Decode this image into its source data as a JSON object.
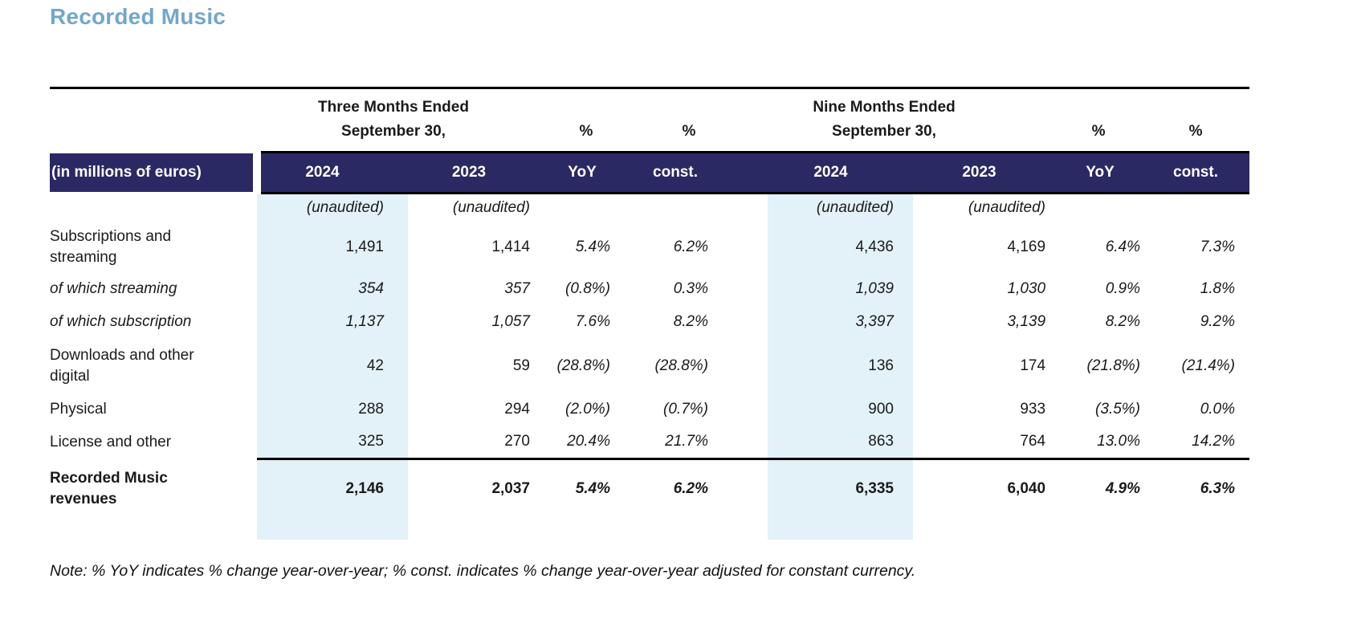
{
  "title": "Recorded Music",
  "table": {
    "group_headers": {
      "three_months_line1": "Three Months Ended",
      "three_months_line2": "September 30,",
      "nine_months_line1": "Nine Months Ended",
      "nine_months_line2": "September 30,",
      "pct_yoy_3m": "%",
      "pct_const_3m": "%",
      "pct_yoy_9m": "%",
      "pct_const_9m": "%"
    },
    "columns": {
      "label": "(in millions of euros)",
      "m3_2024": "2024",
      "m3_2023": "2023",
      "m3_yoy": "YoY",
      "m3_const": "const.",
      "m9_2024": "2024",
      "m9_2023": "2023",
      "m9_yoy": "YoY",
      "m9_const": "const."
    },
    "unaudited_label": "(unaudited)",
    "rows": [
      {
        "label": "Subscriptions and streaming",
        "m3_2024": "1,491",
        "m3_2023": "1,414",
        "m3_yoy": "5.4%",
        "m3_const": "6.2%",
        "m9_2024": "4,436",
        "m9_2023": "4,169",
        "m9_yoy": "6.4%",
        "m9_const": "7.3%"
      },
      {
        "label": "of which streaming",
        "m3_2024": "354",
        "m3_2023": "357",
        "m3_yoy": "(0.8%)",
        "m3_const": "0.3%",
        "m9_2024": "1,039",
        "m9_2023": "1,030",
        "m9_yoy": "0.9%",
        "m9_const": "1.8%"
      },
      {
        "label": "of which subscription",
        "m3_2024": "1,137",
        "m3_2023": "1,057",
        "m3_yoy": "7.6%",
        "m3_const": "8.2%",
        "m9_2024": "3,397",
        "m9_2023": "3,139",
        "m9_yoy": "8.2%",
        "m9_const": "9.2%"
      },
      {
        "label": "Downloads and other digital",
        "m3_2024": "42",
        "m3_2023": "59",
        "m3_yoy": "(28.8%)",
        "m3_const": "(28.8%)",
        "m9_2024": "136",
        "m9_2023": "174",
        "m9_yoy": "(21.8%)",
        "m9_const": "(21.4%)"
      },
      {
        "label": "Physical",
        "m3_2024": "288",
        "m3_2023": "294",
        "m3_yoy": "(2.0%)",
        "m3_const": "(0.7%)",
        "m9_2024": "900",
        "m9_2023": "933",
        "m9_yoy": "(3.5%)",
        "m9_const": "0.0%"
      },
      {
        "label": "License and other",
        "m3_2024": "325",
        "m3_2023": "270",
        "m3_yoy": "20.4%",
        "m3_const": "21.7%",
        "m9_2024": "863",
        "m9_2023": "764",
        "m9_yoy": "13.0%",
        "m9_const": "14.2%"
      }
    ],
    "total": {
      "label": "Recorded Music revenues",
      "m3_2024": "2,146",
      "m3_2023": "2,037",
      "m3_yoy": "5.4%",
      "m3_const": "6.2%",
      "m9_2024": "6,335",
      "m9_2023": "6,040",
      "m9_yoy": "4.9%",
      "m9_const": "6.3%"
    }
  },
  "note": "Note: % YoY indicates % change year-over-year; % const. indicates % change year-over-year adjusted for constant currency."
}
